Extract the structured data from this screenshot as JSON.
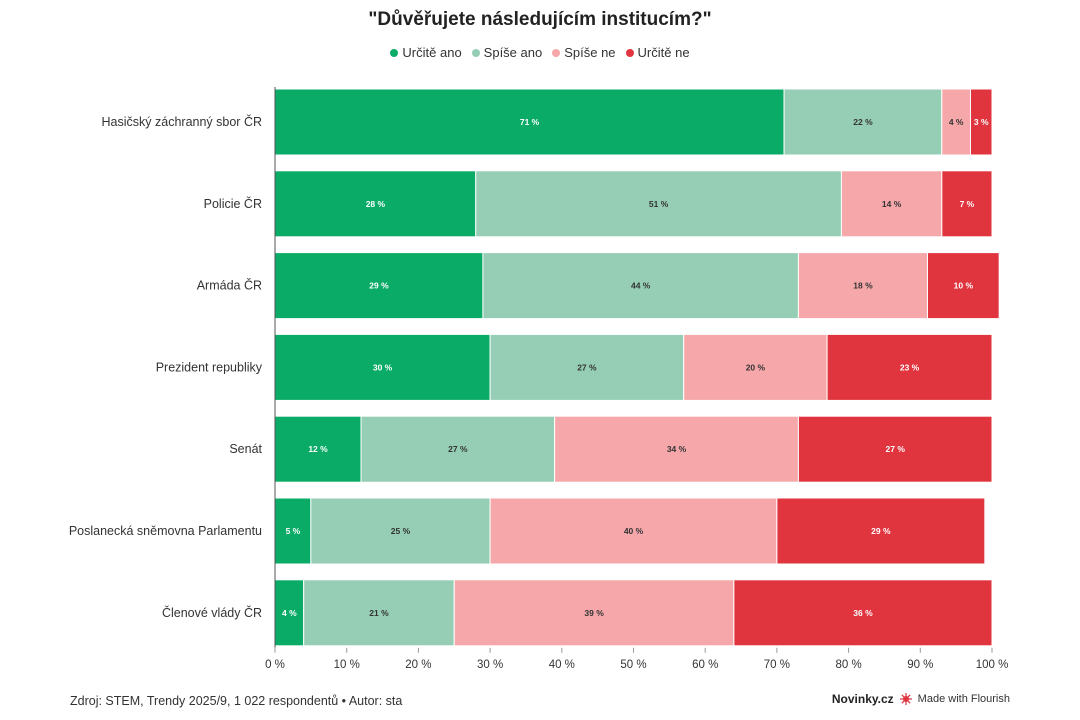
{
  "title": "\"Důvěřujete následujícím institucím?\"",
  "colors": {
    "urcite_ano": "#0aab67",
    "spise_ano": "#95ceb4",
    "spise_ne": "#f5a7aa",
    "urcite_ne": "#e0353f"
  },
  "chart_data": {
    "type": "bar",
    "orientation": "horizontal",
    "stacked": true,
    "categories": [
      "Hasičský záchranný sbor ČR",
      "Policie ČR",
      "Armáda ČR",
      "Prezident republiky",
      "Senát",
      "Poslanecká sněmovna Parlamentu",
      "Členové vlády ČR"
    ],
    "series": [
      {
        "name": "Určitě ano",
        "color": "#0aab67",
        "label_color": "#ffffff",
        "values": [
          71,
          28,
          29,
          30,
          12,
          5,
          4
        ]
      },
      {
        "name": "Spíše ano",
        "color": "#95ceb4",
        "label_color": "#333333",
        "values": [
          22,
          51,
          44,
          27,
          27,
          25,
          21
        ]
      },
      {
        "name": "Spíše ne",
        "color": "#f5a7aa",
        "label_color": "#333333",
        "values": [
          4,
          14,
          18,
          20,
          34,
          40,
          39
        ]
      },
      {
        "name": "Určitě ne",
        "color": "#e0353f",
        "label_color": "#ffffff",
        "values": [
          3,
          7,
          10,
          23,
          27,
          29,
          36
        ]
      }
    ],
    "xlim": [
      0,
      100
    ],
    "xticks": [
      0,
      10,
      20,
      30,
      40,
      50,
      60,
      70,
      80,
      90,
      100
    ],
    "tick_suffix": " %",
    "value_suffix": " %",
    "legend_position": "top"
  },
  "footer": {
    "source": "Zdroj: STEM, Trendy 2025/9, 1 022 respondentů • Autor: sta",
    "brand": "Novinky.cz",
    "made_with": "Made with Flourish"
  }
}
